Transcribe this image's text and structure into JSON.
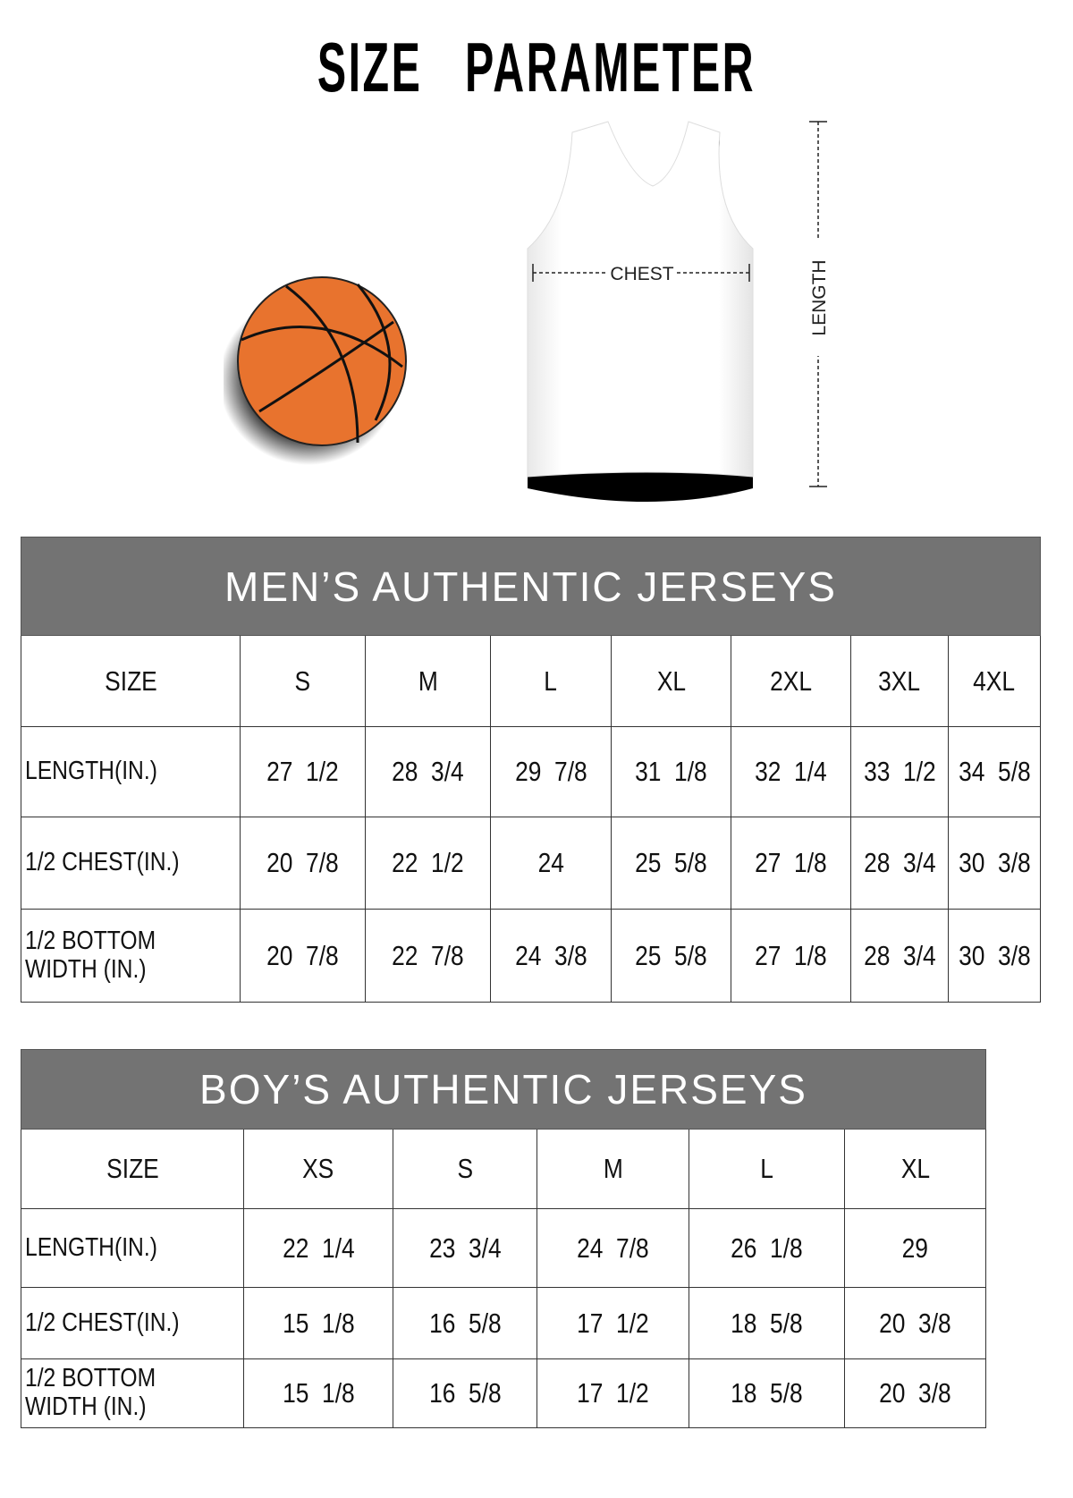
{
  "title": "SIZE   PARAMETER",
  "illustration": {
    "chest_label": "CHEST",
    "length_label": "LENGTH",
    "ball_color": "#e8732e",
    "jersey_color": "#ffffff"
  },
  "header_color": "#737373",
  "men": {
    "title": "MEN’S AUTHENTIC JERSEYS",
    "sizes_label": "SIZE",
    "sizes": [
      "S",
      "M",
      "L",
      "XL",
      "2XL",
      "3XL",
      "4XL"
    ],
    "rows": [
      {
        "label": "LENGTH(IN.)",
        "values": [
          "27  1/2",
          "28  3/4",
          "29  7/8",
          "31  1/8",
          "32  1/4",
          "33  1/2",
          "34  5/8"
        ]
      },
      {
        "label": "1/2 CHEST(IN.)",
        "values": [
          "20  7/8",
          "22  1/2",
          "24",
          "25  5/8",
          "27  1/8",
          "28  3/4",
          "30  3/8"
        ]
      },
      {
        "label": "1/2 BOTTOM WIDTH  (IN.)",
        "values": [
          "20  7/8",
          "22  7/8",
          "24  3/8",
          "25  5/8",
          "27  1/8",
          "28  3/4",
          "30  3/8"
        ]
      }
    ]
  },
  "boys": {
    "title": "BOY’S AUTHENTIC JERSEYS",
    "sizes_label": "SIZE",
    "sizes": [
      "XS",
      "S",
      "M",
      "L",
      "XL"
    ],
    "rows": [
      {
        "label": "LENGTH(IN.)",
        "values": [
          "22  1/4",
          "23  3/4",
          "24  7/8",
          "26  1/8",
          "29"
        ]
      },
      {
        "label": "1/2 CHEST(IN.)",
        "values": [
          "15  1/8",
          "16  5/8",
          "17  1/2",
          "18  5/8",
          "20  3/8"
        ]
      },
      {
        "label": "1/2 BOTTOM WIDTH  (IN.)",
        "values": [
          "15  1/8",
          "16  5/8",
          "17  1/2",
          "18  5/8",
          "20  3/8"
        ]
      }
    ]
  }
}
